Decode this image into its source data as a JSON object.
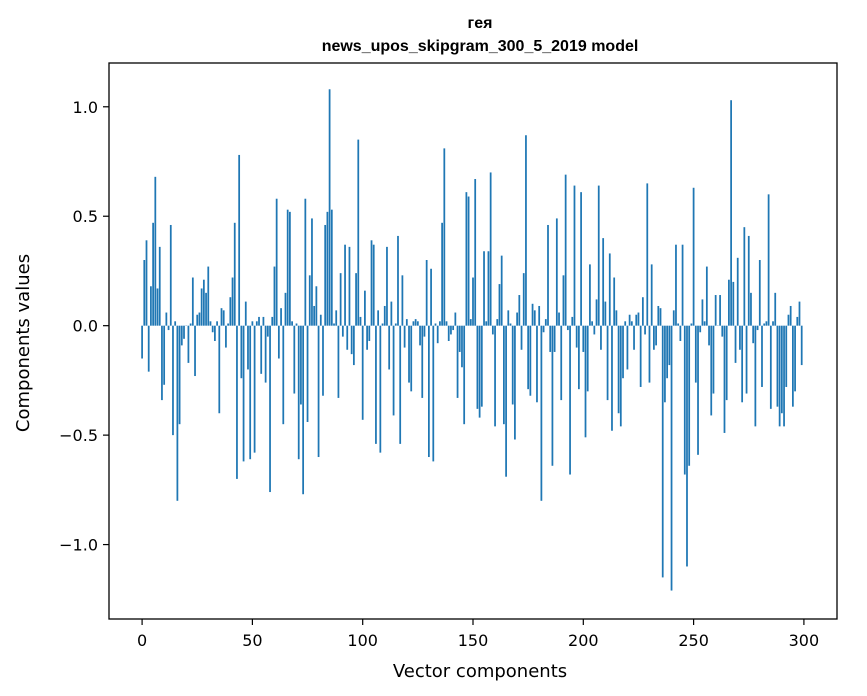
{
  "chart_data": {
    "type": "bar",
    "title_line1": "гея",
    "title_line2": "news_upos_skipgram_300_5_2019 model",
    "xlabel": "Vector components",
    "ylabel": "Components values",
    "xlim": [
      -15,
      315
    ],
    "ylim": [
      -1.34,
      1.2
    ],
    "xticks": [
      0,
      50,
      100,
      150,
      200,
      250,
      300
    ],
    "xtick_labels": [
      "0",
      "50",
      "100",
      "150",
      "200",
      "250",
      "300"
    ],
    "yticks": [
      -1.0,
      -0.5,
      0.0,
      0.5,
      1.0
    ],
    "ytick_labels": [
      "−1.0",
      "−0.5",
      "0.0",
      "0.5",
      "1.0"
    ],
    "bar_color": "#1f77b4",
    "values": [
      -0.15,
      0.3,
      0.39,
      -0.21,
      0.18,
      0.47,
      0.68,
      0.17,
      0.36,
      -0.34,
      -0.27,
      0.06,
      -0.02,
      0.46,
      -0.5,
      0.02,
      -0.8,
      -0.45,
      -0.09,
      -0.06,
      0.0,
      -0.17,
      0.01,
      0.22,
      -0.23,
      0.05,
      0.06,
      0.17,
      0.21,
      0.15,
      0.27,
      0.02,
      -0.03,
      -0.07,
      0.02,
      -0.4,
      0.08,
      0.07,
      -0.1,
      0.01,
      0.13,
      0.22,
      0.47,
      -0.7,
      0.78,
      -0.24,
      -0.62,
      0.11,
      -0.2,
      -0.61,
      0.02,
      -0.58,
      0.02,
      0.04,
      -0.22,
      0.04,
      -0.26,
      -0.05,
      -0.76,
      0.04,
      0.27,
      0.58,
      -0.15,
      0.08,
      -0.45,
      0.15,
      0.53,
      0.52,
      0.02,
      -0.31,
      0.01,
      -0.61,
      -0.36,
      -0.77,
      0.58,
      -0.44,
      0.23,
      0.49,
      0.09,
      0.18,
      -0.6,
      0.05,
      -0.32,
      0.46,
      0.52,
      1.08,
      0.53,
      0.01,
      0.07,
      -0.33,
      0.24,
      -0.05,
      0.37,
      -0.11,
      0.36,
      -0.13,
      -0.18,
      0.24,
      0.85,
      0.04,
      -0.43,
      0.16,
      -0.11,
      -0.07,
      0.39,
      0.37,
      -0.54,
      0.07,
      -0.58,
      0.01,
      0.09,
      0.36,
      -0.2,
      0.11,
      -0.41,
      0.01,
      0.41,
      -0.54,
      0.23,
      -0.1,
      0.03,
      -0.26,
      -0.3,
      0.02,
      0.03,
      0.02,
      -0.09,
      -0.33,
      -0.05,
      0.3,
      -0.6,
      0.26,
      -0.62,
      0.01,
      -0.08,
      0.02,
      0.47,
      0.81,
      0.02,
      -0.07,
      -0.04,
      -0.02,
      0.06,
      -0.33,
      -0.12,
      -0.19,
      -0.45,
      0.61,
      0.59,
      0.03,
      0.22,
      0.67,
      -0.38,
      -0.42,
      -0.37,
      0.34,
      0.02,
      0.34,
      0.7,
      -0.04,
      -0.46,
      0.03,
      0.19,
      0.32,
      -0.45,
      -0.69,
      0.07,
      0.01,
      -0.36,
      -0.52,
      0.06,
      0.14,
      -0.11,
      0.24,
      0.87,
      -0.29,
      -0.32,
      0.1,
      0.07,
      -0.35,
      0.09,
      -0.8,
      -0.03,
      0.03,
      0.46,
      -0.12,
      -0.64,
      -0.12,
      0.49,
      0.06,
      -0.34,
      0.23,
      0.69,
      -0.02,
      -0.68,
      0.04,
      0.64,
      -0.1,
      -0.29,
      0.61,
      -0.12,
      -0.51,
      -0.3,
      0.28,
      0.02,
      -0.04,
      0.12,
      0.64,
      -0.11,
      0.4,
      0.11,
      -0.34,
      0.33,
      -0.48,
      0.22,
      0.07,
      -0.4,
      -0.46,
      -0.24,
      0.02,
      -0.2,
      0.05,
      0.02,
      -0.11,
      0.05,
      0.06,
      -0.28,
      0.13,
      -0.04,
      0.65,
      -0.26,
      0.28,
      -0.11,
      -0.09,
      0.09,
      0.08,
      -1.15,
      -0.35,
      -0.24,
      -0.18,
      -1.21,
      0.07,
      0.37,
      0.01,
      -0.07,
      0.37,
      -0.68,
      -1.1,
      -0.64,
      0.01,
      0.63,
      -0.26,
      -0.59,
      -0.03,
      0.12,
      0.02,
      0.27,
      -0.09,
      -0.41,
      -0.31,
      0.14,
      0.0,
      0.14,
      -0.05,
      -0.49,
      -0.34,
      0.21,
      1.03,
      0.2,
      -0.17,
      0.31,
      -0.11,
      -0.35,
      0.45,
      -0.31,
      0.41,
      0.15,
      -0.08,
      -0.46,
      -0.02,
      0.3,
      -0.28,
      0.01,
      0.02,
      0.6,
      -0.38,
      0.02,
      0.15,
      -0.37,
      -0.46,
      -0.4,
      -0.46,
      -0.28,
      0.05,
      0.09,
      -0.37,
      -0.3,
      0.04,
      0.11,
      -0.18
    ]
  }
}
